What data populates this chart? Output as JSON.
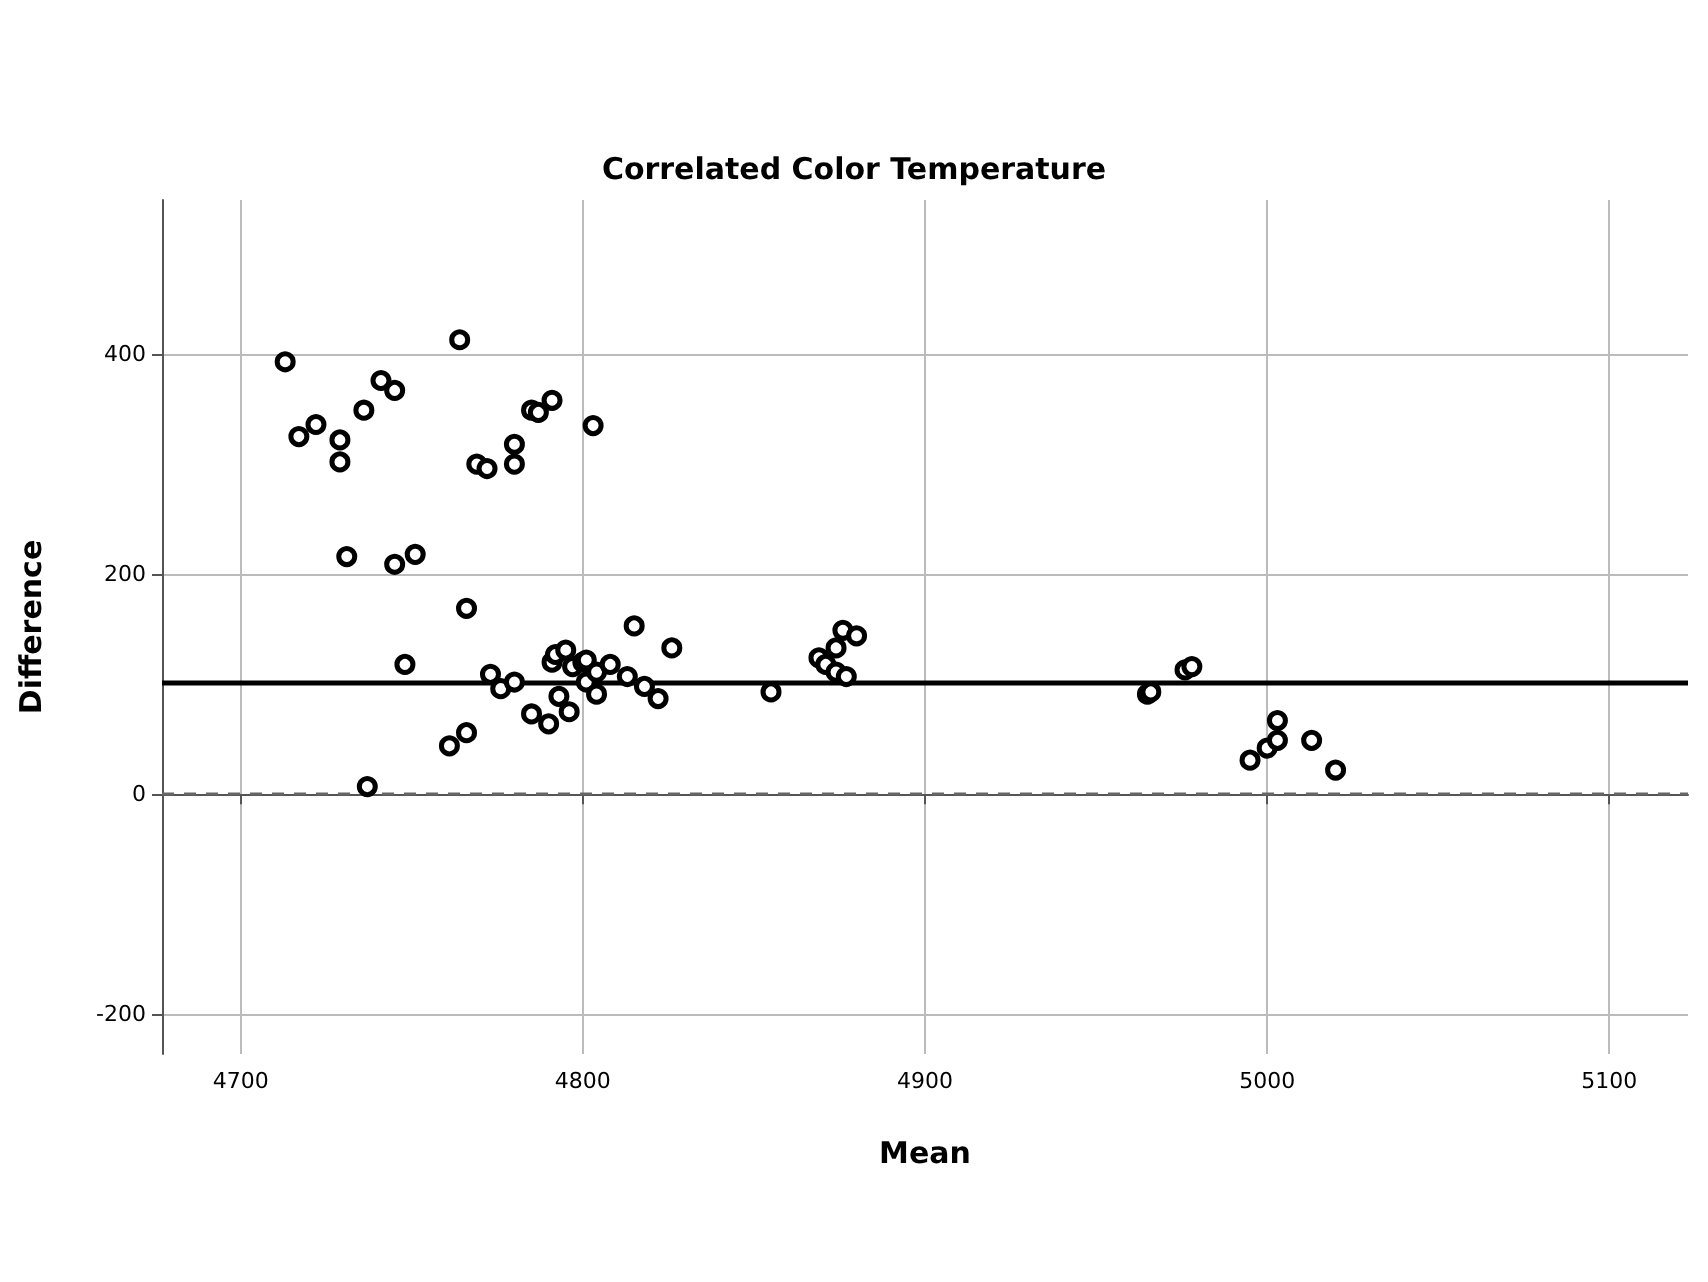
{
  "chart_data": {
    "type": "scatter",
    "title": "Correlated Color Temperature",
    "xlabel": "Mean",
    "ylabel": "Difference",
    "xlim": [
      4677,
      5123
    ],
    "xticks": [
      4700,
      4800,
      4900,
      5000,
      5100
    ],
    "ylim": [
      -236,
      540
    ],
    "yticks": [
      -200,
      0,
      200,
      400
    ],
    "grid": true,
    "marker": "circle",
    "series": [
      {
        "color": "#000000",
        "x": [
          4713,
          4717,
          4722,
          4729,
          4729,
          4731,
          4736,
          4737,
          4741,
          4745,
          4745,
          4748,
          4751,
          4764,
          4761,
          4766,
          4766,
          4769,
          4772,
          4773,
          4776,
          4780,
          4780,
          4780,
          4785,
          4787,
          4785,
          4790,
          4791,
          4791,
          4792,
          4793,
          4796,
          4795,
          4797,
          4800,
          4801,
          4801,
          4803,
          4804,
          4804,
          4808,
          4813,
          4815,
          4818,
          4822,
          4826,
          4855,
          4869,
          4871,
          4874,
          4874,
          4876,
          4877,
          4880,
          4965,
          4966,
          4976,
          4978,
          4995,
          5000,
          5003,
          5003,
          5013,
          5020
        ],
        "values": [
          393,
          325,
          336,
          322,
          302,
          216,
          349,
          7,
          376,
          367,
          209,
          118,
          218,
          413,
          44,
          169,
          56,
          300,
          296,
          109,
          96,
          300,
          318,
          102,
          349,
          347,
          73,
          64,
          358,
          120,
          127,
          89,
          75,
          131,
          116,
          120,
          122,
          102,
          335,
          111,
          91,
          118,
          107,
          153,
          98,
          87,
          133,
          93,
          124,
          118,
          133,
          111,
          149,
          107,
          144,
          91,
          93,
          113,
          116,
          31,
          42,
          49,
          67,
          49,
          22
        ]
      }
    ],
    "ref_lines": [
      {
        "axis": "y",
        "value": 0,
        "color": "#666666",
        "line_style": "dashed"
      },
      {
        "axis": "y",
        "value": 101,
        "color": "#000000",
        "line_style": "solid"
      }
    ]
  }
}
